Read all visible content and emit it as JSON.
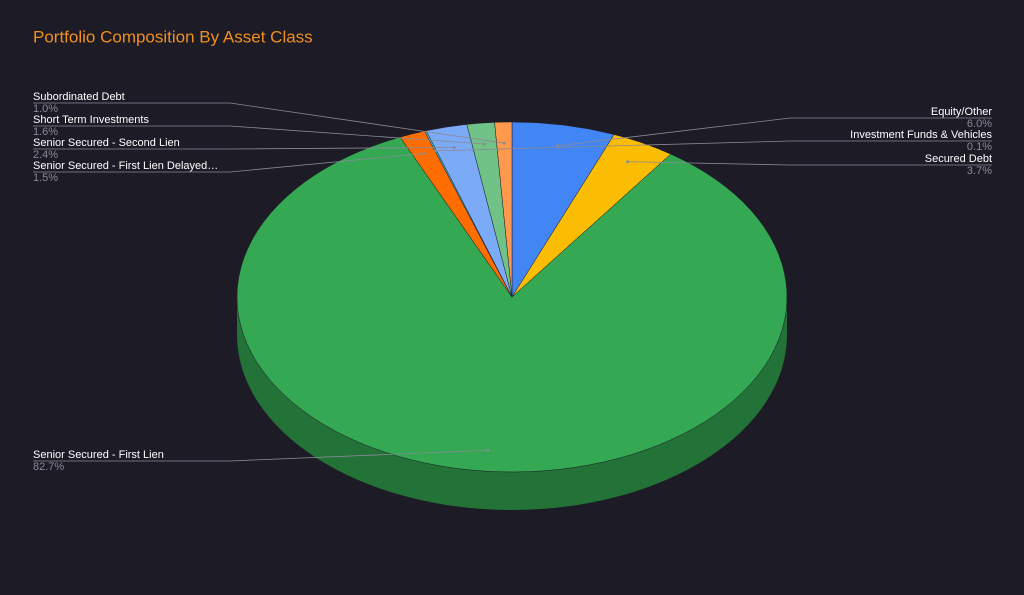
{
  "chart_data": {
    "type": "pie",
    "title": "Portfolio Composition By Asset Class",
    "categories": [
      "Equity/Other",
      "Secured Debt",
      "Senior Secured - First Lien",
      "Senior Secured - First Lien Delayed…",
      "Investment Funds & Vehicles",
      "Senior Secured - Second Lien",
      "Short Term Investments",
      "Subordinated Debt"
    ],
    "values": [
      6.0,
      3.7,
      82.7,
      1.5,
      0.1,
      2.4,
      1.6,
      1.0
    ],
    "value_labels": [
      "6.0%",
      "3.7%",
      "82.7%",
      "1.5%",
      "0.1%",
      "2.4%",
      "1.6%",
      "1.0%"
    ],
    "colors": [
      "#4285f4",
      "#fbbc04",
      "#34a853",
      "#ff6d01",
      "#46bdc6",
      "#7baaf7",
      "#71c287",
      "#ff994d"
    ]
  }
}
